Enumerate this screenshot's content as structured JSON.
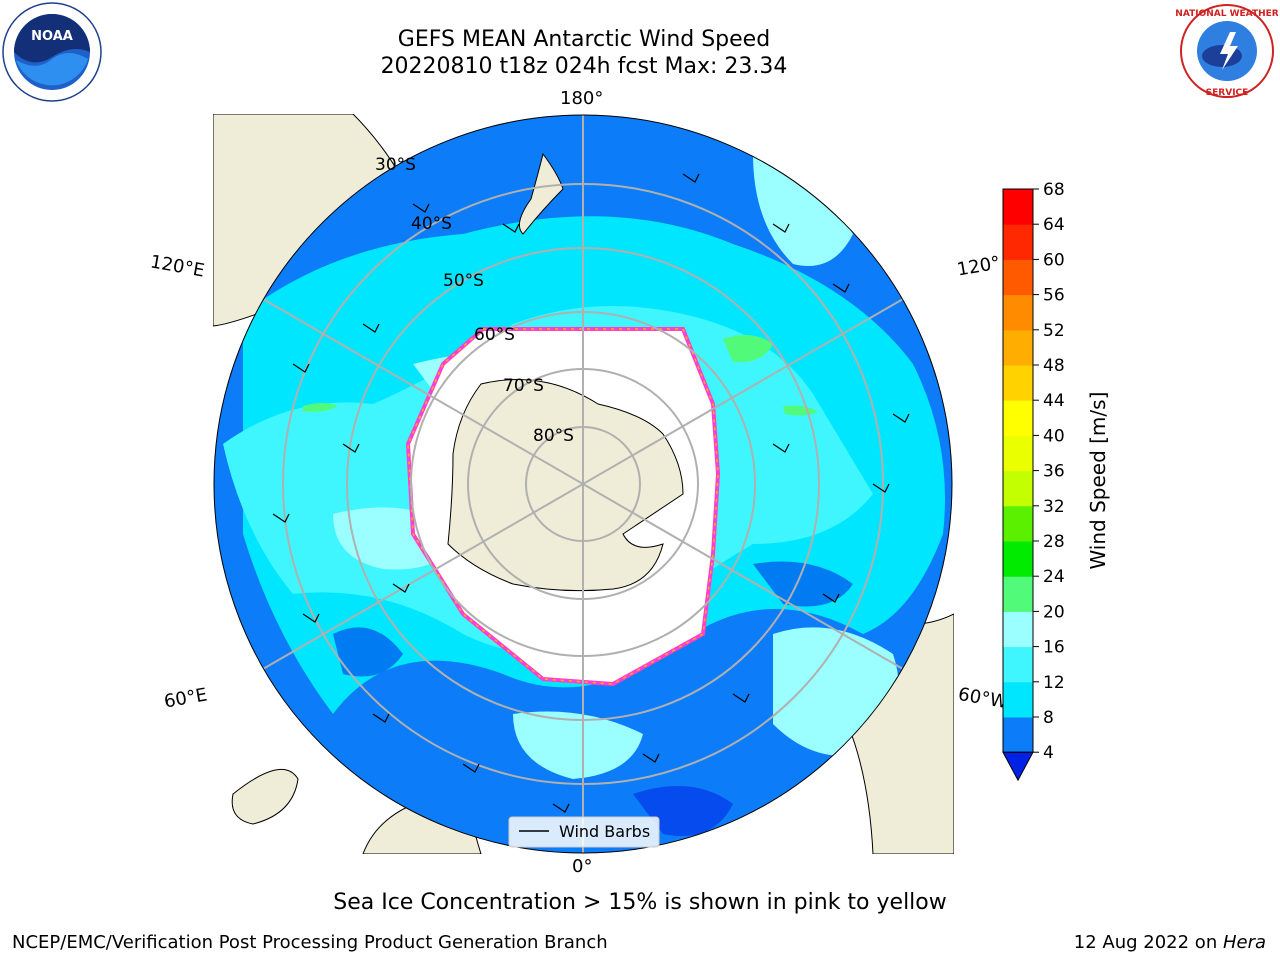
{
  "title_line1": "GEFS MEAN Antarctic Wind Speed",
  "title_line2": "20220810 t18z 024h fcst   Max: 23.34",
  "logos": {
    "left": "noaa-logo",
    "right": "nws-logo",
    "left_text": "NOAA",
    "right_text": "NATIONAL WEATHER SERVICE"
  },
  "map": {
    "projection": "south-polar-stereographic",
    "lon_labels": {
      "top": "180°",
      "upper_left": "120°E",
      "upper_right": "120°",
      "lower_left": "60°E",
      "lower_right": "60°W",
      "bottom": "0°"
    },
    "lat_labels": [
      "30°S",
      "40°S",
      "50°S",
      "60°S",
      "70°S",
      "80°S"
    ],
    "legend_label": "Wind Barbs"
  },
  "colorbar": {
    "label": "Wind Speed [m/s]",
    "ticks": [
      "4",
      "8",
      "12",
      "16",
      "20",
      "24",
      "28",
      "32",
      "36",
      "40",
      "44",
      "48",
      "52",
      "56",
      "60",
      "64",
      "68"
    ],
    "colors": [
      "#0c7cf8",
      "#00e6ff",
      "#3ff6ff",
      "#9bffff",
      "#52fa7a",
      "#00eb00",
      "#5af000",
      "#c3ff00",
      "#eaff00",
      "#ffff00",
      "#ffd200",
      "#ffad00",
      "#ff8c00",
      "#ff5a00",
      "#ff2800",
      "#ff0000"
    ],
    "under_color": "#0022e6"
  },
  "caption": "Sea Ice Concentration > 15% is shown in pink to yellow",
  "credit": "NCEP/EMC/Verification Post Processing Product Generation Branch",
  "date_text": "12 Aug 2022 on ",
  "date_host": "Hera"
}
